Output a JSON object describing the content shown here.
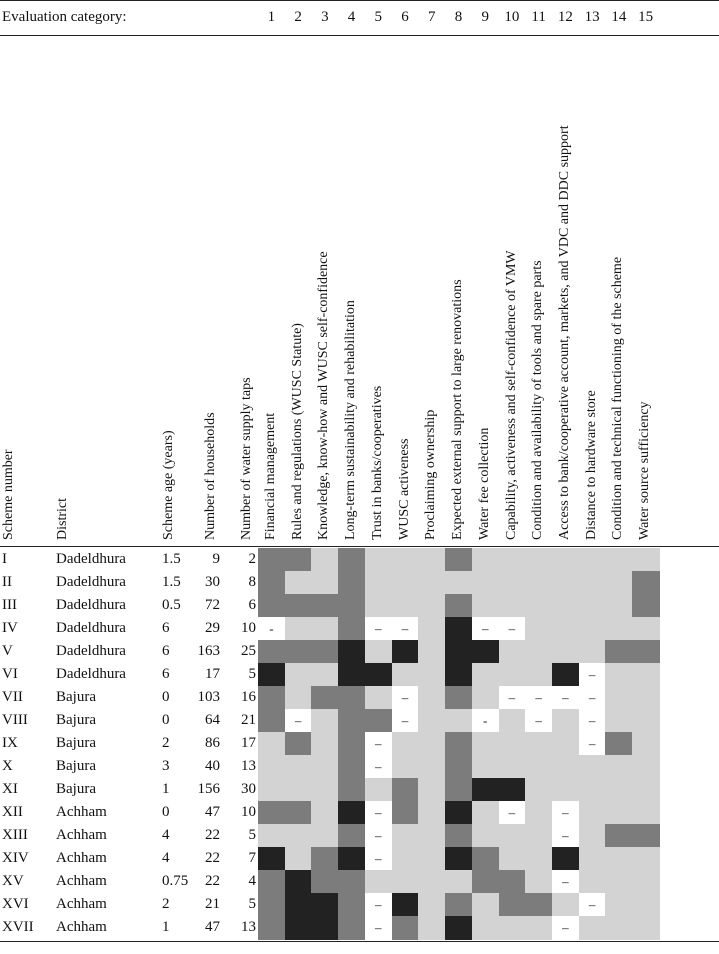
{
  "header": {
    "evaluation_label": "Evaluation category:",
    "category_numbers": [
      "1",
      "2",
      "3",
      "4",
      "5",
      "6",
      "7",
      "8",
      "9",
      "10",
      "11",
      "12",
      "13",
      "14",
      "15"
    ]
  },
  "columns": {
    "scheme_number": "Scheme number",
    "district": "District",
    "scheme_age": "Scheme age (years)",
    "households": "Number of households",
    "taps": "Number of water supply taps",
    "categories": [
      "Financial management",
      "Rules and regulations (WUSC Statute)",
      "Knowledge, know-how and WUSC self-confidence",
      "Long-term sustainability and rehabilitation",
      "Trust in banks/cooperatives",
      "WUSC activeness",
      "Proclaiming ownership",
      "Expected external support to large renovations",
      "Water fee collection",
      "Capability, activeness and self-confidence of VMW",
      "Condition and availability of tools and spare parts",
      "Access to bank/cooperative account, markets, and VDC and DDC support",
      "Distance to hardware store",
      "Condition and technical functioning of the scheme",
      "Water source sufficiency"
    ]
  },
  "legend_colors": {
    "L": "#d3d3d3",
    "M": "#7c7c7c",
    "D": "#222222",
    "W": "#ffffff",
    "A": "#a6a6a6"
  },
  "rows": [
    {
      "scheme": "I",
      "district": "Dadeldhura",
      "age": "1.5",
      "households": "9",
      "taps": "2",
      "cells": [
        "M",
        "M",
        "L",
        "M",
        "L",
        "L",
        "L",
        "M",
        "L",
        "L",
        "L",
        "L",
        "L",
        "L",
        "L"
      ],
      "dashes": [
        "",
        "",
        "",
        "",
        "",
        "",
        "",
        "",
        "",
        "",
        "",
        "",
        "",
        "",
        ""
      ]
    },
    {
      "scheme": "II",
      "district": "Dadeldhura",
      "age": "1.5",
      "households": "30",
      "taps": "8",
      "cells": [
        "M",
        "L",
        "L",
        "M",
        "L",
        "L",
        "L",
        "L",
        "L",
        "L",
        "L",
        "L",
        "L",
        "L",
        "M"
      ],
      "dashes": [
        "",
        "",
        "",
        "",
        "",
        "",
        "",
        "",
        "",
        "",
        "",
        "",
        "",
        "",
        ""
      ]
    },
    {
      "scheme": "III",
      "district": "Dadeldhura",
      "age": "0.5",
      "households": "72",
      "taps": "6",
      "cells": [
        "M",
        "M",
        "M",
        "M",
        "L",
        "L",
        "L",
        "M",
        "L",
        "L",
        "L",
        "L",
        "L",
        "L",
        "M"
      ],
      "dashes": [
        "",
        "",
        "",
        "",
        "",
        "",
        "",
        "",
        "",
        "",
        "",
        "",
        "",
        "",
        ""
      ]
    },
    {
      "scheme": "IV",
      "district": "Dadeldhura",
      "age": "6",
      "households": "29",
      "taps": "10",
      "cells": [
        "W",
        "L",
        "L",
        "M",
        "W",
        "W",
        "L",
        "D",
        "W",
        "W",
        "L",
        "L",
        "L",
        "L",
        "L"
      ],
      "dashes": [
        "-",
        "",
        "",
        "",
        "–",
        "–",
        "",
        "",
        "–",
        "–",
        "",
        "",
        "",
        "",
        ""
      ]
    },
    {
      "scheme": "V",
      "district": "Dadeldhura",
      "age": "6",
      "households": "163",
      "taps": "25",
      "cells": [
        "M",
        "M",
        "M",
        "D",
        "L",
        "D",
        "L",
        "D",
        "D",
        "L",
        "L",
        "L",
        "L",
        "M",
        "M"
      ],
      "dashes": [
        "",
        "",
        "",
        "",
        "",
        "",
        "",
        "",
        "",
        "",
        "",
        "",
        "",
        "",
        ""
      ]
    },
    {
      "scheme": "VI",
      "district": "Dadeldhura",
      "age": "6",
      "households": "17",
      "taps": "5",
      "cells": [
        "D",
        "L",
        "L",
        "D",
        "D",
        "L",
        "L",
        "D",
        "L",
        "L",
        "L",
        "D",
        "W",
        "L",
        "L"
      ],
      "dashes": [
        "",
        "",
        "",
        "",
        "",
        "",
        "",
        "",
        "",
        "",
        "",
        "",
        "–",
        "",
        ""
      ]
    },
    {
      "scheme": "VII",
      "district": "Bajura",
      "age": "0",
      "households": "103",
      "taps": "16",
      "cells": [
        "M",
        "L",
        "M",
        "M",
        "L",
        "W",
        "L",
        "M",
        "L",
        "W",
        "W",
        "W",
        "W",
        "L",
        "L"
      ],
      "dashes": [
        "",
        "",
        "",
        "",
        "",
        "–",
        "",
        "",
        "",
        "–",
        "–",
        "–",
        "–",
        "",
        ""
      ]
    },
    {
      "scheme": "VIII",
      "district": "Bajura",
      "age": "0",
      "households": "64",
      "taps": "21",
      "cells": [
        "M",
        "W",
        "L",
        "M",
        "M",
        "W",
        "L",
        "L",
        "W",
        "L",
        "W",
        "L",
        "W",
        "L",
        "L"
      ],
      "dashes": [
        "",
        "–",
        "",
        "",
        "",
        "–",
        "",
        "",
        "-",
        "",
        "–",
        "",
        "–",
        "",
        ""
      ]
    },
    {
      "scheme": "IX",
      "district": "Bajura",
      "age": "2",
      "households": "86",
      "taps": "17",
      "cells": [
        "L",
        "M",
        "L",
        "M",
        "W",
        "L",
        "L",
        "M",
        "L",
        "L",
        "L",
        "L",
        "W",
        "M",
        "L"
      ],
      "dashes": [
        "",
        "",
        "",
        "",
        "–",
        "",
        "",
        "",
        "",
        "",
        "",
        "",
        "–",
        "",
        ""
      ]
    },
    {
      "scheme": "X",
      "district": "Bajura",
      "age": "3",
      "households": "40",
      "taps": "13",
      "cells": [
        "L",
        "L",
        "L",
        "M",
        "W",
        "L",
        "L",
        "M",
        "L",
        "L",
        "L",
        "L",
        "L",
        "L",
        "L"
      ],
      "dashes": [
        "",
        "",
        "",
        "",
        "–",
        "",
        "",
        "",
        "",
        "",
        "",
        "",
        "",
        "",
        ""
      ]
    },
    {
      "scheme": "XI",
      "district": "Bajura",
      "age": "1",
      "households": "156",
      "taps": "30",
      "cells": [
        "L",
        "L",
        "L",
        "M",
        "L",
        "M",
        "L",
        "M",
        "D",
        "D",
        "L",
        "L",
        "L",
        "L",
        "L"
      ],
      "dashes": [
        "",
        "",
        "",
        "",
        "",
        "",
        "",
        "",
        "",
        "",
        "",
        "",
        "",
        "",
        ""
      ]
    },
    {
      "scheme": "XII",
      "district": "Achham",
      "age": "0",
      "households": "47",
      "taps": "10",
      "cells": [
        "M",
        "M",
        "L",
        "D",
        "W",
        "M",
        "L",
        "D",
        "L",
        "W",
        "L",
        "W",
        "L",
        "L",
        "L"
      ],
      "dashes": [
        "",
        "",
        "",
        "",
        "–",
        "",
        "",
        "",
        "",
        "–",
        "",
        "–",
        "",
        "",
        ""
      ]
    },
    {
      "scheme": "XIII",
      "district": "Achham",
      "age": "4",
      "households": "22",
      "taps": "5",
      "cells": [
        "L",
        "L",
        "L",
        "M",
        "W",
        "L",
        "L",
        "M",
        "L",
        "L",
        "L",
        "W",
        "L",
        "M",
        "M"
      ],
      "dashes": [
        "",
        "",
        "",
        "",
        "–",
        "",
        "",
        "",
        "",
        "",
        "",
        "–",
        "",
        "",
        ""
      ]
    },
    {
      "scheme": "XIV",
      "district": "Achham",
      "age": "4",
      "households": "22",
      "taps": "7",
      "cells": [
        "D",
        "L",
        "M",
        "D",
        "W",
        "L",
        "L",
        "D",
        "M",
        "L",
        "L",
        "D",
        "L",
        "L",
        "L"
      ],
      "dashes": [
        "",
        "",
        "",
        "",
        "–",
        "",
        "",
        "",
        "",
        "",
        "",
        "",
        "",
        "",
        ""
      ]
    },
    {
      "scheme": "XV",
      "district": "Achham",
      "age": "0.75",
      "households": "22",
      "taps": "4",
      "cells": [
        "M",
        "D",
        "M",
        "M",
        "L",
        "L",
        "L",
        "L",
        "M",
        "M",
        "L",
        "W",
        "L",
        "L",
        "L"
      ],
      "dashes": [
        "",
        "",
        "",
        "",
        "",
        "",
        "",
        "",
        "",
        "",
        "",
        "–",
        "",
        "",
        ""
      ]
    },
    {
      "scheme": "XVI",
      "district": "Achham",
      "age": "2",
      "households": "21",
      "taps": "5",
      "cells": [
        "M",
        "D",
        "D",
        "M",
        "W",
        "D",
        "L",
        "M",
        "L",
        "M",
        "M",
        "L",
        "W",
        "L",
        "L"
      ],
      "dashes": [
        "",
        "",
        "",
        "",
        "–",
        "",
        "",
        "",
        "",
        "",
        "",
        "",
        "–",
        "",
        ""
      ]
    },
    {
      "scheme": "XVII",
      "district": "Achham",
      "age": "1",
      "households": "47",
      "taps": "13",
      "cells": [
        "M",
        "D",
        "D",
        "M",
        "W",
        "M",
        "L",
        "D",
        "L",
        "L",
        "L",
        "W",
        "L",
        "L",
        "L"
      ],
      "dashes": [
        "",
        "",
        "",
        "",
        "–",
        "",
        "",
        "",
        "",
        "",
        "",
        "–",
        "",
        "",
        ""
      ]
    }
  ]
}
